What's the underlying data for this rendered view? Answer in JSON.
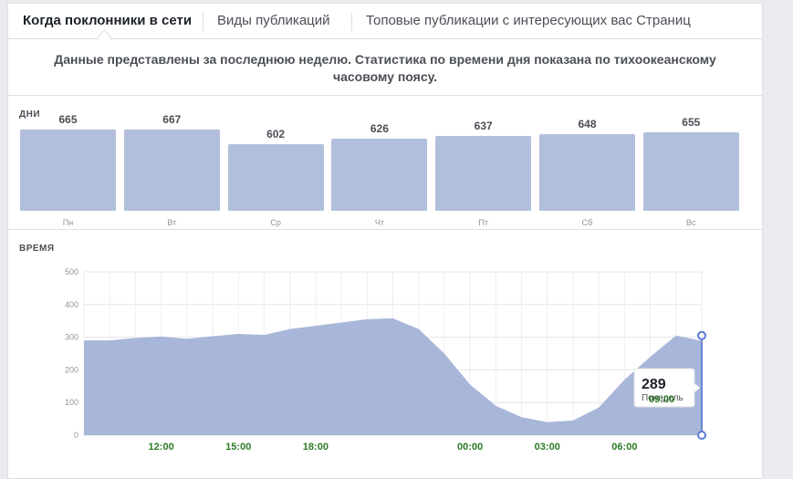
{
  "tabs": [
    {
      "label": "Когда поклонники в сети",
      "active": true
    },
    {
      "label": "Виды публикаций",
      "active": false
    },
    {
      "label": "Топовые публикации с интересующих вас Страниц",
      "active": false
    }
  ],
  "notice": "Данные представлены за последнюю неделю. Статистика по времени дня показана по тихоокеанскому часовому поясу.",
  "days_section": {
    "label": "ДНИ",
    "days": [
      {
        "name": "Пн",
        "value": 665
      },
      {
        "name": "Вт",
        "value": 667
      },
      {
        "name": "Ср",
        "value": 602
      },
      {
        "name": "Чт",
        "value": 626
      },
      {
        "name": "Пт",
        "value": 637
      },
      {
        "name": "Сб",
        "value": 648
      },
      {
        "name": "Вс",
        "value": 655
      }
    ]
  },
  "time_section": {
    "label": "ВРЕМЯ",
    "tooltip": {
      "value": "289",
      "subtitle": "Понедель",
      "time": "09:00"
    }
  },
  "colors": {
    "bar": "#b2bfdc",
    "area": "#a8b6d9",
    "accent": "#5b7bd5",
    "tick_label_green": "#2d7a26"
  },
  "chart_data": {
    "type": "area",
    "title": "",
    "xlabel": "",
    "ylabel": "",
    "ylim": [
      0,
      500
    ],
    "yticks": [
      0,
      100,
      200,
      300,
      400,
      500
    ],
    "grid": true,
    "x_labels": [
      {
        "label": "12:00",
        "hour": 3
      },
      {
        "label": "15:00",
        "hour": 6
      },
      {
        "label": "18:00",
        "hour": 9
      },
      {
        "label": "00:00",
        "hour": 15
      },
      {
        "label": "03:00",
        "hour": 18
      },
      {
        "label": "06:00",
        "hour": 21
      }
    ],
    "x_hours": [
      0,
      1,
      2,
      3,
      4,
      5,
      6,
      7,
      8,
      9,
      10,
      11,
      12,
      13,
      14,
      15,
      16,
      17,
      18,
      19,
      20,
      21,
      22,
      23,
      24
    ],
    "values": [
      290,
      290,
      298,
      302,
      295,
      303,
      310,
      307,
      325,
      335,
      345,
      355,
      358,
      325,
      250,
      155,
      90,
      55,
      40,
      45,
      85,
      170,
      240,
      305,
      289
    ]
  }
}
